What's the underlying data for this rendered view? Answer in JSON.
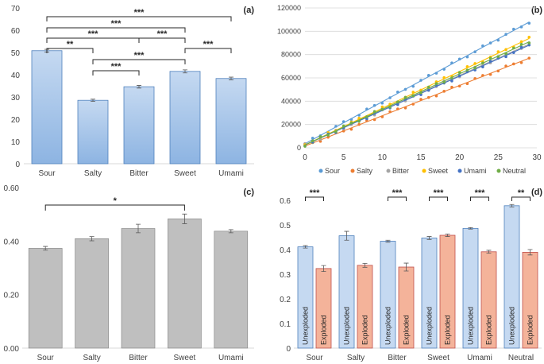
{
  "colors": {
    "axis": "#d9d9d9",
    "text": "#404040",
    "sig": "#262626",
    "blue_top": "#c5d9f1",
    "blue_bottom": "#8db4e2",
    "blue_edge": "#4f81bd",
    "grey_fill": "#bfbfbf",
    "grey_edge": "#7f7f7f",
    "orange_fill": "#f4b39a",
    "orange_edge": "#c0504d"
  },
  "chart_data": [
    {
      "id": "a",
      "panel_label": "(a)",
      "type": "bar",
      "categories": [
        "Sour",
        "Salty",
        "Bitter",
        "Sweet",
        "Umami"
      ],
      "values": [
        50.8,
        28.5,
        34.6,
        41.5,
        38.3
      ],
      "errors": [
        0.6,
        0.5,
        0.6,
        0.7,
        0.6
      ],
      "ylim": [
        0,
        70
      ],
      "yticks": [
        "0",
        "10",
        "20",
        "30",
        "40",
        "50",
        "60",
        "70"
      ],
      "significance": [
        {
          "from": 0,
          "to": 4,
          "label": "***",
          "level": 1
        },
        {
          "from": 0,
          "to": 3,
          "label": "***",
          "level": 2
        },
        {
          "from": 0,
          "to": 2,
          "label": "***",
          "level": 3
        },
        {
          "from": 2,
          "to": 3,
          "label": "***",
          "level": 3
        },
        {
          "from": 0,
          "to": 1,
          "label": "**",
          "level": 4
        },
        {
          "from": 3,
          "to": 4,
          "label": "***",
          "level": 4
        },
        {
          "from": 1,
          "to": 3,
          "label": "***",
          "level": 5
        },
        {
          "from": 1,
          "to": 2,
          "label": "***",
          "level": 6
        }
      ]
    },
    {
      "id": "b",
      "panel_label": "(b)",
      "type": "scatter",
      "xlim": [
        0,
        30
      ],
      "ylim": [
        0,
        120000
      ],
      "xticks": [
        "0",
        "5",
        "10",
        "15",
        "20",
        "25",
        "30"
      ],
      "yticks": [
        "0",
        "20000",
        "40000",
        "60000",
        "80000",
        "100000",
        "120000"
      ],
      "series": [
        {
          "name": "Sour",
          "color": "#5b9bd5",
          "intercept": 3500,
          "slope": 3600
        },
        {
          "name": "Salty",
          "color": "#ed7d31",
          "intercept": 1500,
          "slope": 2600
        },
        {
          "name": "Bitter",
          "color": "#a5a5a5",
          "intercept": 2500,
          "slope": 2980
        },
        {
          "name": "Sweet",
          "color": "#ffc000",
          "intercept": 2500,
          "slope": 3150
        },
        {
          "name": "Umami",
          "color": "#4472c4",
          "intercept": 2500,
          "slope": 2950
        },
        {
          "name": "Neutral",
          "color": "#70ad47",
          "intercept": 2500,
          "slope": 3050
        }
      ]
    },
    {
      "id": "c",
      "panel_label": "(c)",
      "type": "bar",
      "categories": [
        "Sour",
        "Salty",
        "Bitter",
        "Sweet",
        "Umami"
      ],
      "values": [
        0.373,
        0.409,
        0.447,
        0.483,
        0.437
      ],
      "errors": [
        0.007,
        0.008,
        0.016,
        0.018,
        0.006
      ],
      "ylim": [
        0,
        0.6
      ],
      "yticks": [
        "0.00",
        "0.20",
        "0.40",
        "0.60"
      ],
      "significance": [
        {
          "from": 0,
          "to": 3,
          "label": "*",
          "level": 1
        }
      ]
    },
    {
      "id": "d",
      "panel_label": "(d)",
      "type": "bar",
      "categories": [
        "Sour",
        "Salty",
        "Bitter",
        "Sweet",
        "Umami",
        "Neutral"
      ],
      "series": [
        {
          "name": "Unexploded",
          "values": [
            0.411,
            0.456,
            0.434,
            0.447,
            0.486,
            0.578
          ],
          "errors": [
            0.005,
            0.018,
            0.004,
            0.006,
            0.003,
            0.005
          ]
        },
        {
          "name": "Exploded",
          "values": [
            0.323,
            0.336,
            0.329,
            0.458,
            0.391,
            0.389
          ],
          "errors": [
            0.012,
            0.008,
            0.016,
            0.005,
            0.006,
            0.011
          ]
        }
      ],
      "ylim": [
        0,
        0.6
      ],
      "yticks": [
        "0",
        "0.1",
        "0.2",
        "0.3",
        "0.4",
        "0.5",
        "0.6"
      ],
      "significance": [
        {
          "category": 0,
          "label": "***"
        },
        {
          "category": 2,
          "label": "***"
        },
        {
          "category": 3,
          "label": "***"
        },
        {
          "category": 4,
          "label": "***"
        },
        {
          "category": 5,
          "label": "**"
        }
      ]
    }
  ]
}
